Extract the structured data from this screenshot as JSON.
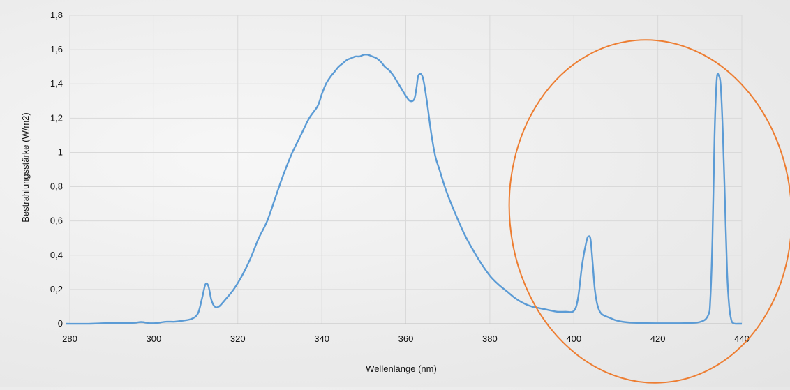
{
  "chart_data": {
    "type": "line",
    "title": "",
    "xlabel": "Wellenlänge (nm)",
    "ylabel": "Bestrahlungsstärke (W/m2)",
    "xlim": [
      280,
      440
    ],
    "ylim": [
      0,
      1.8
    ],
    "x_ticks": [
      "280",
      "300",
      "320",
      "340",
      "360",
      "380",
      "400",
      "420",
      "440"
    ],
    "y_ticks": [
      "0",
      "0,2",
      "0,4",
      "0,6",
      "0,8",
      "1",
      "1,2",
      "1,4",
      "1,6",
      "1,8"
    ],
    "grid": true,
    "legend": "none",
    "series_color": "#5b9bd5",
    "highlight_color": "#ed7d31",
    "highlight_shape": "ellipse around region ~390–440 nm",
    "series": [
      {
        "x": [
          279,
          285,
          290,
          295,
          297,
          299,
          300,
          301,
          303,
          305,
          307,
          309,
          310.5,
          311.5,
          312.3,
          313,
          313.7,
          314.5,
          315.5,
          317,
          319,
          321,
          323,
          325,
          327,
          329,
          331,
          333,
          335,
          337,
          339,
          340,
          341,
          342,
          343,
          344,
          345,
          346,
          347,
          348,
          349,
          350,
          351,
          352,
          353,
          354,
          355,
          356,
          357,
          358,
          359,
          360,
          361,
          362,
          362.5,
          363,
          364,
          365,
          366,
          367,
          368,
          369,
          370,
          372,
          374,
          376,
          378,
          380,
          382,
          384,
          386,
          388,
          390,
          392,
          394,
          396,
          398,
          400,
          401,
          402,
          403,
          403.5,
          404,
          404.5,
          405,
          405.5,
          406,
          406.5,
          407,
          408,
          409,
          410,
          412,
          415,
          420,
          425,
          430,
          432,
          432.5,
          433,
          433.5,
          434,
          434.5,
          435,
          435.5,
          436,
          436.5,
          437,
          437.5,
          438,
          438.5,
          439,
          440
        ],
        "y": [
          0,
          0,
          0.005,
          0.005,
          0.01,
          0.003,
          0.003,
          0.005,
          0.012,
          0.012,
          0.018,
          0.028,
          0.06,
          0.15,
          0.23,
          0.22,
          0.14,
          0.1,
          0.1,
          0.14,
          0.2,
          0.28,
          0.38,
          0.5,
          0.6,
          0.74,
          0.88,
          1.0,
          1.1,
          1.2,
          1.27,
          1.34,
          1.4,
          1.44,
          1.47,
          1.5,
          1.52,
          1.54,
          1.55,
          1.56,
          1.56,
          1.57,
          1.57,
          1.56,
          1.55,
          1.53,
          1.5,
          1.48,
          1.45,
          1.41,
          1.37,
          1.33,
          1.3,
          1.31,
          1.37,
          1.45,
          1.44,
          1.3,
          1.12,
          0.98,
          0.9,
          0.82,
          0.75,
          0.63,
          0.52,
          0.43,
          0.35,
          0.28,
          0.23,
          0.19,
          0.15,
          0.12,
          0.1,
          0.09,
          0.08,
          0.07,
          0.07,
          0.075,
          0.15,
          0.35,
          0.48,
          0.51,
          0.49,
          0.35,
          0.2,
          0.12,
          0.08,
          0.06,
          0.05,
          0.04,
          0.03,
          0.02,
          0.01,
          0.005,
          0.003,
          0.003,
          0.01,
          0.05,
          0.15,
          0.5,
          1.1,
          1.42,
          1.45,
          1.38,
          1.1,
          0.7,
          0.3,
          0.1,
          0.02,
          0.003,
          0,
          0,
          0
        ]
      }
    ]
  }
}
